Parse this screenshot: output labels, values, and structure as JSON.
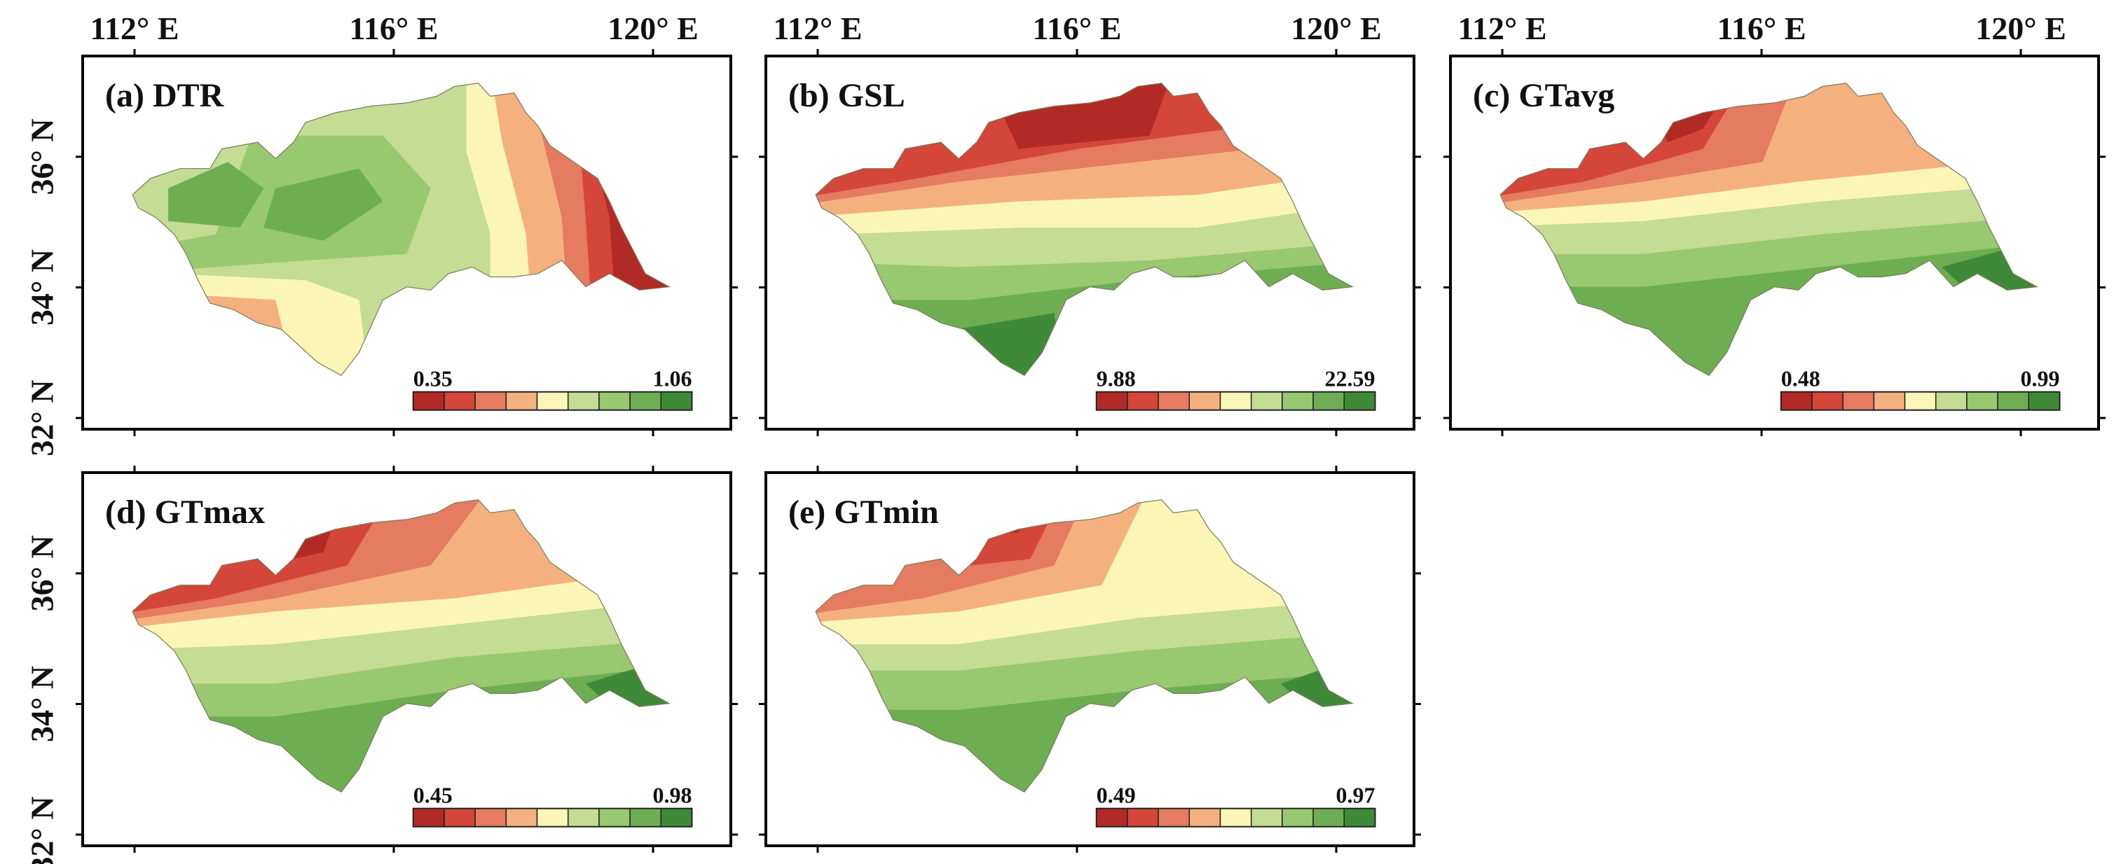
{
  "longitude_labels": [
    "112° E",
    "116° E",
    "120° E"
  ],
  "latitude_labels": [
    "36° N",
    "34° N",
    "32° N"
  ],
  "colors": [
    "#b22a25",
    "#d4453a",
    "#e57b60",
    "#f4b17f",
    "#fbf6b8",
    "#c4dc94",
    "#98c86f",
    "#6dae52",
    "#3f8a38"
  ],
  "panels": [
    {
      "id": "a",
      "title": "(a) DTR",
      "min_label": "0.35",
      "max_label": "1.06"
    },
    {
      "id": "b",
      "title": "(b) GSL",
      "min_label": "9.88",
      "max_label": "22.59"
    },
    {
      "id": "c",
      "title": "(c) GTavg",
      "min_label": "0.48",
      "max_label": "0.99"
    },
    {
      "id": "d",
      "title": "(d) GTmax",
      "min_label": "0.45",
      "max_label": "0.98"
    },
    {
      "id": "e",
      "title": "(e) GTmin",
      "min_label": "0.49",
      "max_label": "0.97"
    }
  ]
}
